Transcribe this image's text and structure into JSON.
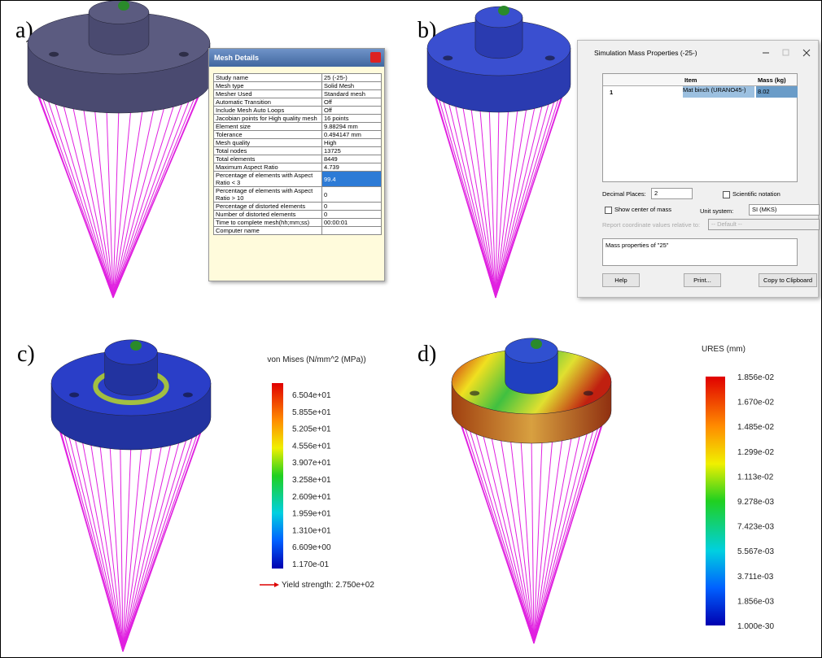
{
  "panels": [
    "a)",
    "b)",
    "c)",
    "d)"
  ],
  "mesh_details": {
    "title": "Mesh Details",
    "rows": [
      {
        "label": "Study name",
        "value": "25 (-25-)"
      },
      {
        "label": "Mesh type",
        "value": "Solid Mesh"
      },
      {
        "label": "Mesher Used",
        "value": "Standard mesh"
      },
      {
        "label": "Automatic Transition",
        "value": "Off"
      },
      {
        "label": "Include Mesh Auto Loops",
        "value": "Off"
      },
      {
        "label": "Jacobian points for High quality mesh",
        "value": "16 points"
      },
      {
        "label": "Element size",
        "value": "9.88294 mm"
      },
      {
        "label": "Tolerance",
        "value": "0.494147 mm"
      },
      {
        "label": "Mesh quality",
        "value": "High"
      },
      {
        "label": "Total nodes",
        "value": "13725"
      },
      {
        "label": "Total elements",
        "value": "8449"
      },
      {
        "label": "Maximum Aspect Ratio",
        "value": "4.739"
      },
      {
        "label": "Percentage of elements with Aspect Ratio < 3",
        "value": "99.4"
      },
      {
        "label": "Percentage of elements with Aspect Ratio > 10",
        "value": "0"
      },
      {
        "label": "Percentage of distorted elements",
        "value": "0"
      },
      {
        "label": "Number of distorted elements",
        "value": "0"
      },
      {
        "label": "Time to complete mesh(hh;mm;ss)",
        "value": "00:00:01"
      },
      {
        "label": "Computer name"
      }
    ]
  },
  "mass_properties": {
    "title": "Simulation Mass Properties (-25-)",
    "columns": [
      "Item",
      "Mass (kg)"
    ],
    "row": {
      "index": "1",
      "item": "Mat binch (URANO45-)",
      "mass": "8.02"
    },
    "decimal_places_label": "Decimal Places:",
    "decimal_places": "2",
    "scientific": "Scientific notation",
    "center": "Show center of mass",
    "unit_label": "Unit system:",
    "unit": "SI (MKS)",
    "relative_label": "Report coordinate values relative to:",
    "relative": "-- Default --",
    "output": "Mass properties of \"25\"",
    "buttons": [
      "Help",
      "Print...",
      "Copy to Clipboard"
    ]
  },
  "stress_legend": {
    "title": "von Mises (N/mm^2 (MPa))",
    "ticks": [
      "6.504e+01",
      "5.855e+01",
      "5.205e+01",
      "4.556e+01",
      "3.907e+01",
      "3.258e+01",
      "2.609e+01",
      "1.959e+01",
      "1.310e+01",
      "6.609e+00",
      "1.170e-01"
    ],
    "yield": "Yield strength: 2.750e+02"
  },
  "displacement_legend": {
    "title": "URES (mm)",
    "ticks": [
      "1.856e-02",
      "1.670e-02",
      "1.485e-02",
      "1.299e-02",
      "1.113e-02",
      "9.278e-03",
      "7.423e-03",
      "5.567e-03",
      "3.711e-03",
      "1.856e-03",
      "1.000e-30"
    ]
  }
}
